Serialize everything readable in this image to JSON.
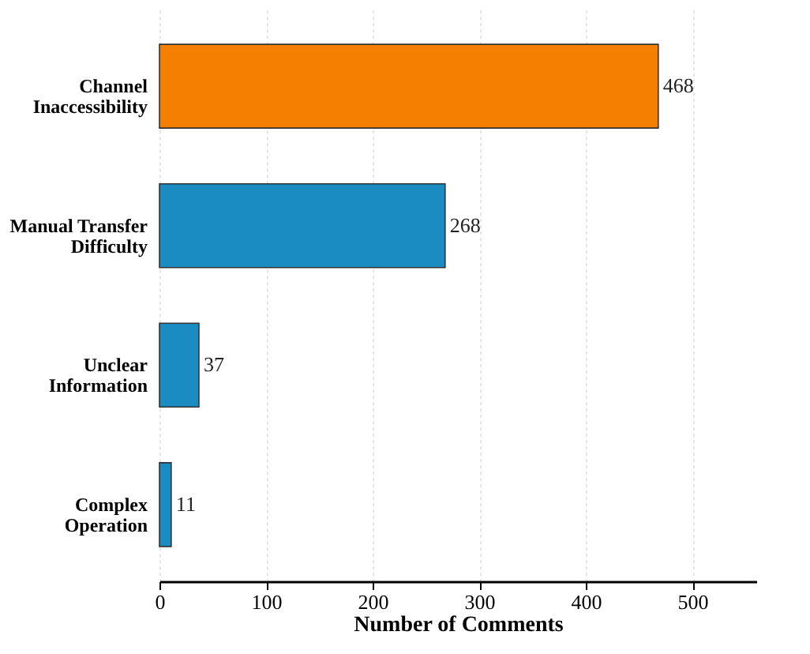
{
  "chart_data": {
    "type": "bar",
    "orientation": "horizontal",
    "xlabel": "Number of Comments",
    "categories": [
      "Channel Inaccessibility",
      "Manual Transfer Difficulty",
      "Unclear Information",
      "Complex Operation"
    ],
    "values": [
      468,
      268,
      37,
      11
    ],
    "colors": [
      "#f57f00",
      "#1a8cc1",
      "#1a8cc1",
      "#1a8cc1"
    ],
    "xlim": [
      0,
      560
    ],
    "xticks": [
      0,
      100,
      200,
      300,
      400,
      500
    ],
    "grid": "x",
    "data_labels": true
  }
}
